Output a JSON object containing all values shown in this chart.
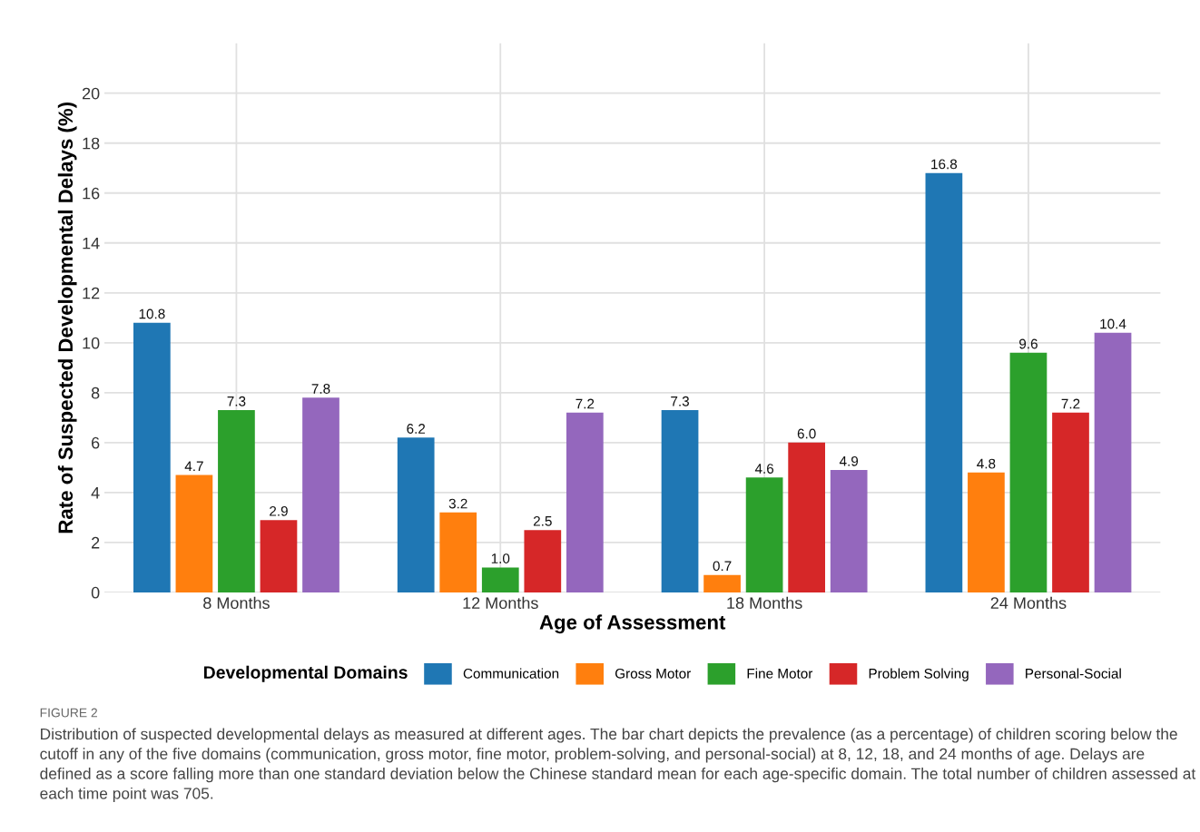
{
  "chart_data": {
    "type": "bar",
    "xlabel": "Age of Assessment",
    "ylabel": "Rate of Suspected Developmental Delays (%)",
    "legend_title": "Developmental Domains",
    "categories": [
      "8 Months",
      "12 Months",
      "18 Months",
      "24 Months"
    ],
    "series": [
      {
        "name": "Communication",
        "color": "#1f77b4",
        "values": [
          10.8,
          6.2,
          7.3,
          16.8
        ]
      },
      {
        "name": "Gross Motor",
        "color": "#ff7f0e",
        "values": [
          4.7,
          3.2,
          0.7,
          4.8
        ]
      },
      {
        "name": "Fine Motor",
        "color": "#2ca02c",
        "values": [
          7.3,
          1.0,
          4.6,
          9.6
        ]
      },
      {
        "name": "Problem Solving",
        "color": "#d62728",
        "values": [
          2.9,
          2.5,
          6.0,
          7.2
        ]
      },
      {
        "name": "Personal-Social",
        "color": "#9467bd",
        "values": [
          7.8,
          7.2,
          4.9,
          10.4
        ]
      }
    ],
    "ylim": [
      0,
      22
    ],
    "yticks": [
      0,
      2,
      4,
      6,
      8,
      10,
      12,
      14,
      16,
      18,
      20
    ],
    "grid": true,
    "legend": "bottom",
    "value_labels": [
      [
        "10.8",
        "6.2",
        "7.3",
        "16.8"
      ],
      [
        "4.7",
        "3.2",
        "0.7",
        "4.8"
      ],
      [
        "7.3",
        "1.0",
        "4.6",
        "9.6"
      ],
      [
        "2.9",
        "2.5",
        "6.0",
        "7.2"
      ],
      [
        "7.8",
        "7.2",
        "4.9",
        "10.4"
      ]
    ],
    "annotations": [
      "FIGURE 2",
      "Distribution of suspected developmental delays as measured at different ages. The bar chart depicts the prevalence (as a percentage) of children scoring below the cutoff in any of the five domains (communication, gross motor, fine motor, problem-solving, and personal-social) at 8, 12, 18, and 24 months of age. Delays are defined as a score falling more than one standard deviation below the Chinese standard mean for each age-specific domain. The total number of children assessed at each time point was 705."
    ]
  }
}
